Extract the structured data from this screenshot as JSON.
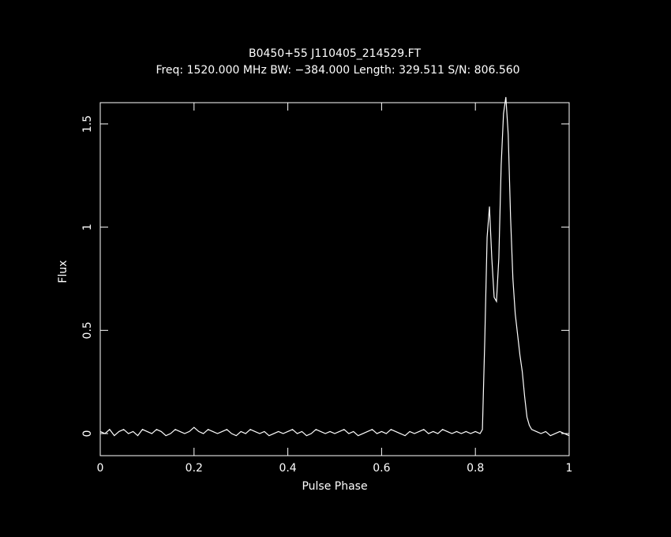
{
  "chart_data": {
    "type": "line",
    "title": "B0450+55 J110405_214529.FT",
    "subtitle": "Freq: 1520.000 MHz BW: −384.000 Length: 329.511 S/N: 806.560",
    "x_label": "Pulse Phase",
    "y_label": "Flux",
    "xlim": [
      0,
      1
    ],
    "xticks": [
      0,
      0.2,
      0.4,
      0.6,
      0.8,
      1
    ],
    "ylim": [
      -0.107,
      1.603
    ],
    "yticks": [
      0,
      0.5,
      1,
      1.5
    ],
    "series": [
      {
        "color": "#ffffff",
        "x": [
          0,
          0.01,
          0.02,
          0.03,
          0.04,
          0.05,
          0.06,
          0.07,
          0.08,
          0.09,
          0.1,
          0.11,
          0.12,
          0.13,
          0.14,
          0.15,
          0.16,
          0.17,
          0.18,
          0.19,
          0.2,
          0.21,
          0.22,
          0.23,
          0.24,
          0.25,
          0.26,
          0.27,
          0.28,
          0.29,
          0.3,
          0.31,
          0.32,
          0.33,
          0.34,
          0.35,
          0.36,
          0.37,
          0.38,
          0.39,
          0.4,
          0.41,
          0.42,
          0.43,
          0.44,
          0.45,
          0.46,
          0.47,
          0.48,
          0.49,
          0.5,
          0.51,
          0.52,
          0.53,
          0.54,
          0.55,
          0.56,
          0.57,
          0.58,
          0.59,
          0.6,
          0.61,
          0.62,
          0.63,
          0.64,
          0.65,
          0.66,
          0.67,
          0.68,
          0.69,
          0.7,
          0.71,
          0.72,
          0.73,
          0.74,
          0.75,
          0.76,
          0.77,
          0.78,
          0.79,
          0.8,
          0.81,
          0.815,
          0.82,
          0.825,
          0.83,
          0.835,
          0.84,
          0.845,
          0.85,
          0.855,
          0.86,
          0.865,
          0.87,
          0.875,
          0.88,
          0.885,
          0.89,
          0.895,
          0.9,
          0.905,
          0.91,
          0.915,
          0.92,
          0.93,
          0.94,
          0.95,
          0.96,
          0.97,
          0.98,
          0.99,
          1
        ],
        "values": [
          0.01,
          0.0,
          0.02,
          -0.01,
          0.01,
          0.02,
          0.0,
          0.01,
          -0.01,
          0.02,
          0.01,
          0.0,
          0.02,
          0.01,
          -0.01,
          0.0,
          0.02,
          0.01,
          0.0,
          0.01,
          0.03,
          0.01,
          0.0,
          0.02,
          0.01,
          0.0,
          0.01,
          0.02,
          0.0,
          -0.01,
          0.01,
          0.0,
          0.02,
          0.01,
          0.0,
          0.01,
          -0.01,
          0.0,
          0.01,
          0.0,
          0.01,
          0.02,
          0.0,
          0.01,
          -0.01,
          0.0,
          0.02,
          0.01,
          0.0,
          0.01,
          0.0,
          0.01,
          0.02,
          0.0,
          0.01,
          -0.01,
          0.0,
          0.01,
          0.02,
          0.0,
          0.01,
          0.0,
          0.02,
          0.01,
          0.0,
          -0.01,
          0.01,
          0.0,
          0.01,
          0.02,
          0.0,
          0.01,
          0.0,
          0.02,
          0.01,
          0.0,
          0.01,
          0.0,
          0.01,
          0.0,
          0.01,
          0.0,
          0.02,
          0.45,
          0.95,
          1.1,
          0.85,
          0.66,
          0.64,
          0.85,
          1.3,
          1.55,
          1.63,
          1.45,
          1.05,
          0.75,
          0.58,
          0.48,
          0.38,
          0.3,
          0.18,
          0.08,
          0.04,
          0.02,
          0.01,
          0.0,
          0.01,
          -0.01,
          0.0,
          0.01,
          0.0,
          -0.01
        ]
      }
    ]
  }
}
